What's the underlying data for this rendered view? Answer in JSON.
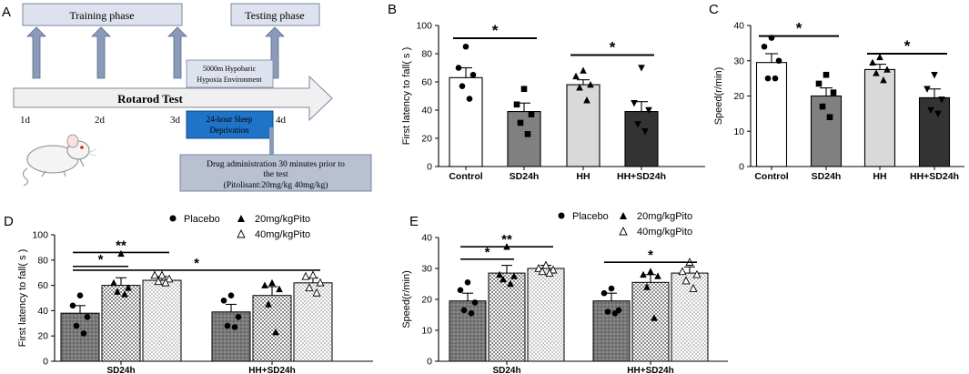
{
  "panel_a": {
    "letter": "A",
    "training_phase": "Training phase",
    "testing_phase": "Testing phase",
    "hypobaric_line1": "5000m Hypobaric",
    "hypobaric_line2": "Hypoxia Environment",
    "rotarod": "Rotarod Test",
    "days": [
      "1d",
      "2d",
      "3d",
      "4d"
    ],
    "sleep_line1": "24-hour Sleep",
    "sleep_line2": "Deprivation",
    "drug_line1": "Drug administration 30 minutes prior to",
    "drug_line2": "the test",
    "drug_line3": "(Pitolisant:20mg/kg  40mg/kg)",
    "colors": {
      "box": "#dde2ee",
      "arrow": "#8a9bba",
      "sleep_box": "#1f73c8",
      "drug_box": "#b8c0d1"
    }
  },
  "legend": {
    "placebo": "Placebo",
    "pito20": "20mg/kgPito",
    "pito40": "40mg/kgPito"
  },
  "colors": {
    "white_bar": "#ffffff",
    "gray_bar": "#808080",
    "light_bar": "#d9d9d9",
    "dark_bar": "#333333"
  },
  "chart_data": [
    {
      "id": "B",
      "type": "bar",
      "title": "",
      "xlabel": "",
      "ylabel": "First latency to fall( s )",
      "ylim": [
        0,
        100
      ],
      "yticks": [
        0,
        20,
        40,
        60,
        80,
        100
      ],
      "categories": [
        "Control",
        "SD24h",
        "HH",
        "HH+SD24h"
      ],
      "values": [
        63,
        39,
        58,
        39
      ],
      "errors": [
        7,
        6,
        3.5,
        7
      ],
      "points": [
        [
          85,
          70,
          65,
          57,
          48
        ],
        [
          55,
          44,
          37,
          31,
          23
        ],
        [
          68,
          64,
          58,
          56,
          47
        ],
        [
          70,
          45,
          40,
          30,
          25
        ]
      ],
      "markers": [
        "circle",
        "square",
        "triangle",
        "triangle-down"
      ],
      "colors": [
        "#ffffff",
        "#808080",
        "#d9d9d9",
        "#333333"
      ],
      "significance": [
        {
          "from": 0,
          "to": 1,
          "label": "*",
          "y": 91
        },
        {
          "from": 2,
          "to": 3,
          "label": "*",
          "y": 79
        }
      ]
    },
    {
      "id": "C",
      "type": "bar",
      "title": "",
      "xlabel": "",
      "ylabel": "Speed(r/min)",
      "ylim": [
        0,
        40
      ],
      "yticks": [
        0,
        10,
        20,
        30,
        40
      ],
      "categories": [
        "Control",
        "SD24h",
        "HH",
        "HH+SD24h"
      ],
      "values": [
        29.5,
        20,
        27.5,
        19.5
      ],
      "errors": [
        2.5,
        2.3,
        1.5,
        2.5
      ],
      "points": [
        [
          36.5,
          34,
          30,
          25,
          25
        ],
        [
          26,
          23.5,
          21,
          17,
          14
        ],
        [
          31,
          29.5,
          27.5,
          26.5,
          24.5
        ],
        [
          26,
          22,
          19,
          16,
          15
        ]
      ],
      "markers": [
        "circle",
        "square",
        "triangle",
        "triangle-down"
      ],
      "colors": [
        "#ffffff",
        "#808080",
        "#d9d9d9",
        "#333333"
      ],
      "significance": [
        {
          "from": 0,
          "to": 1,
          "label": "*",
          "y": 37
        },
        {
          "from": 2,
          "to": 3,
          "label": "*",
          "y": 32
        }
      ]
    },
    {
      "id": "D",
      "type": "bar",
      "title": "",
      "xlabel": "",
      "ylabel": "First latency to fall( s )",
      "ylim": [
        0,
        100
      ],
      "yticks": [
        0,
        20,
        40,
        60,
        80,
        100
      ],
      "groups": [
        "SD24h",
        "HH+SD24h"
      ],
      "series": [
        {
          "name": "Placebo",
          "values": [
            38,
            39
          ],
          "errors": [
            6,
            6
          ],
          "marker": "circle",
          "fill": "dark-dots"
        },
        {
          "name": "20mg/kgPito",
          "values": [
            60,
            52
          ],
          "errors": [
            6,
            7
          ],
          "marker": "triangle",
          "fill": "check"
        },
        {
          "name": "40mg/kgPito",
          "values": [
            64,
            62
          ],
          "errors": [
            3,
            4
          ],
          "marker": "triangle-open",
          "fill": "light-check"
        }
      ],
      "points": [
        [
          [
            52,
            44,
            35,
            28,
            22
          ],
          [
            85,
            62,
            58,
            55,
            53
          ],
          [
            68,
            68,
            65,
            63,
            62
          ]
        ],
        [
          [
            52,
            48,
            35,
            28,
            27
          ],
          [
            62,
            60,
            57,
            45,
            23
          ],
          [
            68,
            67,
            62,
            58,
            54
          ]
        ]
      ],
      "significance": [
        {
          "label": "**",
          "x1": 0,
          "x2": 2,
          "y": 86
        },
        {
          "label": "*",
          "x1": 0,
          "x2": 1,
          "y": 75
        },
        {
          "label": "*",
          "x1": 0,
          "x2": 5,
          "y": 72
        }
      ]
    },
    {
      "id": "E",
      "type": "bar",
      "title": "",
      "xlabel": "",
      "ylabel": "Speed(r/min)",
      "ylim": [
        0,
        40
      ],
      "yticks": [
        0,
        10,
        20,
        30,
        40
      ],
      "groups": [
        "SD24h",
        "HH+SD24h"
      ],
      "series": [
        {
          "name": "Placebo",
          "values": [
            19.5,
            19.5
          ],
          "errors": [
            2.5,
            2.5
          ],
          "marker": "circle",
          "fill": "dark-dots"
        },
        {
          "name": "20mg/kgPito",
          "values": [
            28.5,
            25.5
          ],
          "errors": [
            2.5,
            2.5
          ],
          "marker": "triangle",
          "fill": "check"
        },
        {
          "name": "40mg/kgPito",
          "values": [
            30,
            28.5
          ],
          "errors": [
            1,
            2
          ],
          "marker": "triangle-open",
          "fill": "light-check"
        }
      ],
      "points": [
        [
          [
            25.5,
            23,
            19,
            16.5,
            15.5
          ],
          [
            37,
            28,
            27.5,
            26.5,
            25
          ],
          [
            31,
            30,
            29.5,
            29,
            28.5
          ]
        ],
        [
          [
            23.5,
            22,
            16.5,
            16,
            15.5
          ],
          [
            29,
            28,
            27.5,
            24,
            14
          ],
          [
            32,
            29,
            28,
            26,
            23.5
          ]
        ]
      ],
      "significance": [
        {
          "label": "**",
          "x1": 0,
          "x2": 2,
          "y": 37
        },
        {
          "label": "*",
          "x1": 0,
          "x2": 1,
          "y": 33
        },
        {
          "label": "*",
          "x1": 3,
          "x2": 5,
          "y": 32
        }
      ]
    }
  ]
}
